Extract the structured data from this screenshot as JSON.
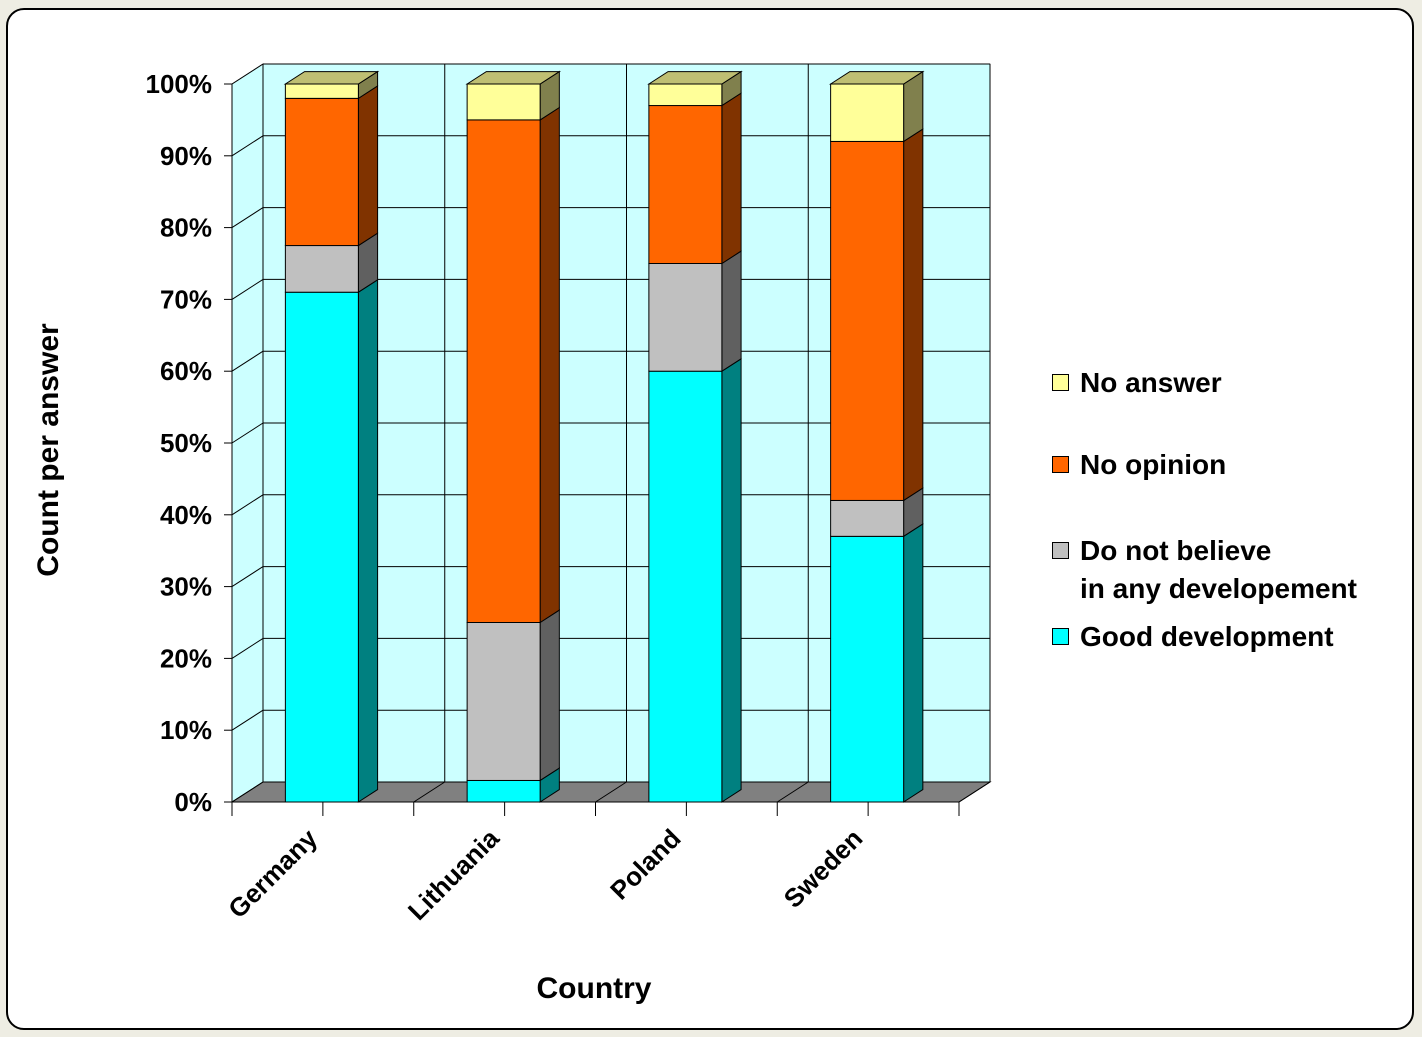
{
  "chart_data": {
    "type": "bar",
    "stacked": true,
    "percent_stacked": true,
    "style": "3d-column",
    "title": "",
    "xlabel": "Country",
    "ylabel": "Count per answer",
    "categories": [
      "Germany",
      "Lithuania",
      "Poland",
      "Sweden"
    ],
    "y_ticks": [
      "0%",
      "10%",
      "20%",
      "30%",
      "40%",
      "50%",
      "60%",
      "70%",
      "80%",
      "90%",
      "100%"
    ],
    "ylim": [
      0,
      100
    ],
    "grid": true,
    "legend_position": "right",
    "series": [
      {
        "name": "Good  development",
        "color": "#00ffff",
        "values": [
          71,
          3,
          60,
          37
        ]
      },
      {
        "name": "Do not believe\nin any developement",
        "color": "#c0c0c0",
        "values": [
          6.5,
          22,
          15,
          5
        ]
      },
      {
        "name": "No opinion",
        "color": "#ff6600",
        "values": [
          20.5,
          70,
          22,
          50
        ]
      },
      {
        "name": "No answer",
        "color": "#ffff99",
        "values": [
          2,
          5,
          3,
          8
        ]
      }
    ],
    "colors": {
      "wall": "#ccffff",
      "floor": "#808080",
      "gridline": "#000000"
    }
  }
}
